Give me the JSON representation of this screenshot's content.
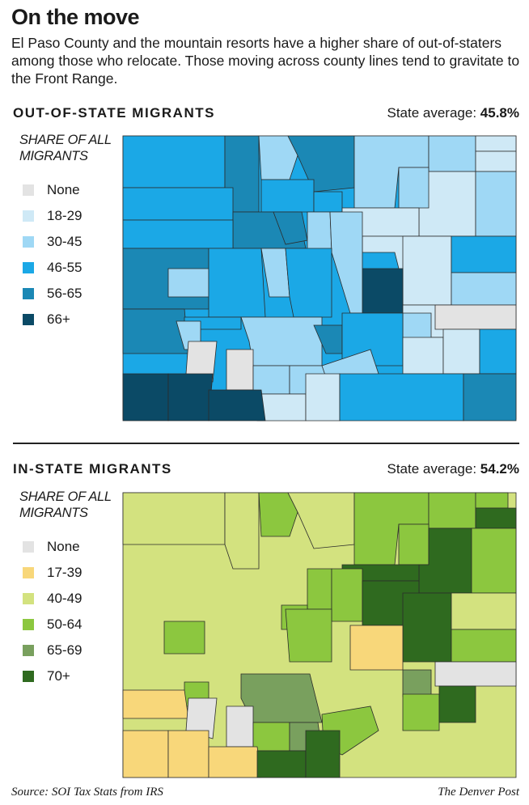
{
  "title": "On the move",
  "subtitle": "El Paso County and the mountain resorts have a higher share of out-of-staters among those who relocate. Those moving across county lines tend to gravitate to the Front Range.",
  "out_of_state": {
    "heading": "OUT-OF-STATE MIGRANTS",
    "average_label": "State average: ",
    "average_value": "45.8%",
    "legend_title": "SHARE OF ALL MIGRANTS",
    "legend": [
      {
        "label": "None",
        "color": "#e3e3e3"
      },
      {
        "label": "18-29",
        "color": "#cfe9f6"
      },
      {
        "label": "30-45",
        "color": "#9fd8f5"
      },
      {
        "label": "46-55",
        "color": "#1ba8e6"
      },
      {
        "label": "56-65",
        "color": "#1b88b5"
      },
      {
        "label": "66+",
        "color": "#0b4a66"
      }
    ]
  },
  "in_state": {
    "heading": "IN-STATE MIGRANTS",
    "average_label": "State average: ",
    "average_value": "54.2%",
    "legend_title": "SHARE OF ALL MIGRANTS",
    "legend": [
      {
        "label": "None",
        "color": "#e3e3e3"
      },
      {
        "label": "17-39",
        "color": "#f8d77a"
      },
      {
        "label": "40-49",
        "color": "#d3e27f"
      },
      {
        "label": "50-64",
        "color": "#8cc73f"
      },
      {
        "label": "65-69",
        "color": "#79a05e"
      },
      {
        "label": "70+",
        "color": "#2f6a1f"
      }
    ]
  },
  "footer": {
    "source": "Source: SOI Tax Stats from IRS",
    "credit": "The Denver Post"
  }
}
